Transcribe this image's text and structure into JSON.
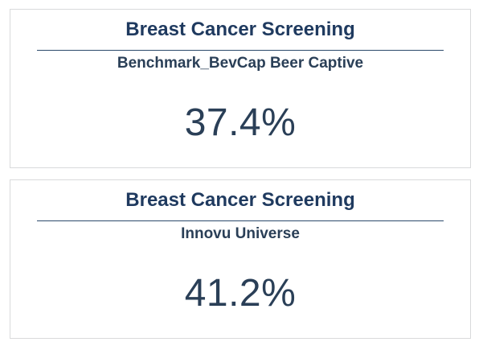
{
  "colors": {
    "title": "#1f3a5f",
    "text": "#2a3f57",
    "divider": "#2b4a6b",
    "card_border": "#d9dadb",
    "background": "#ffffff"
  },
  "cards": [
    {
      "title": "Breast Cancer Screening",
      "subtitle": "Benchmark_BevCap Beer Captive",
      "value": "37.4%"
    },
    {
      "title": "Breast Cancer Screening",
      "subtitle": "Innovu Universe",
      "value": "41.2%"
    }
  ]
}
